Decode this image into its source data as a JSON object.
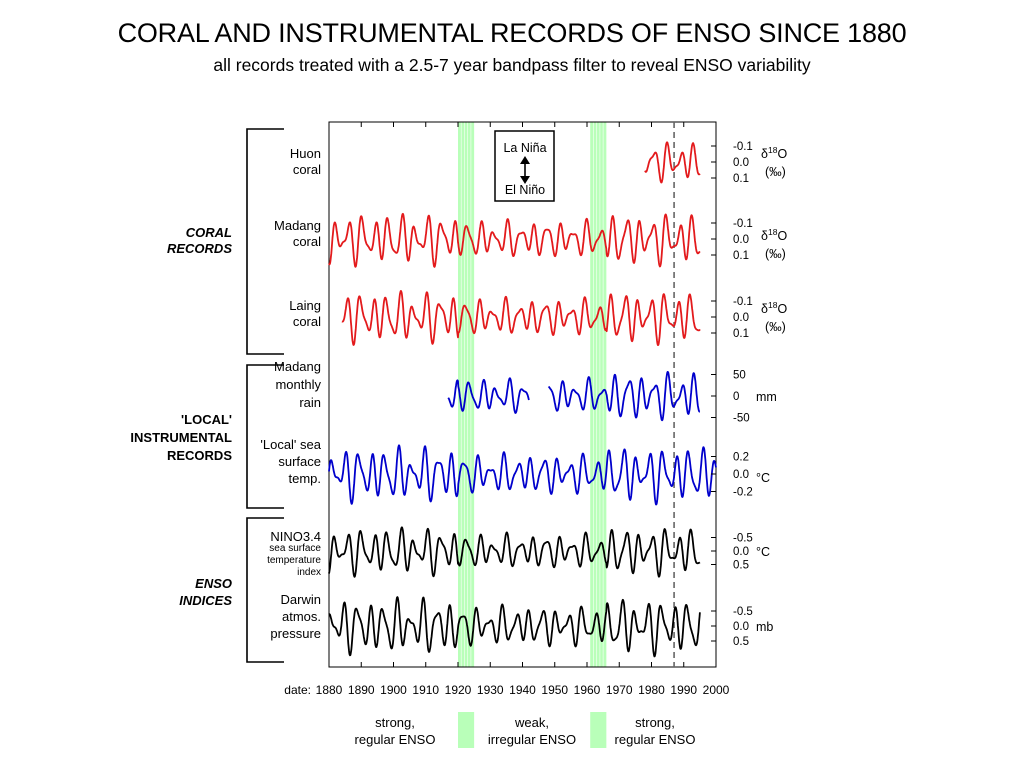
{
  "title": "CORAL AND INSTRUMENTAL RECORDS OF ENSO SINCE 1880",
  "subtitle": "all records treated with a 2.5-7 year bandpass filter to reveal ENSO variability",
  "chart_data": {
    "type": "line",
    "x_axis": {
      "label": "date:",
      "range": [
        1880,
        2000
      ],
      "ticks": [
        "1880",
        "1890",
        "1900",
        "1910",
        "1920",
        "1930",
        "1940",
        "1950",
        "1960",
        "1970",
        "1980",
        "1990",
        "2000"
      ]
    },
    "highlight_bands": [
      {
        "from": 1920,
        "to": 1925,
        "color": "#7fff7f"
      },
      {
        "from": 1961,
        "to": 1966,
        "color": "#7fff7f"
      }
    ],
    "dashed_marker_year": 1987,
    "legend_box": {
      "top_label": "La Niña",
      "bottom_label": "El Niño"
    },
    "groups": [
      {
        "label": [
          "CORAL",
          "RECORDS"
        ],
        "series": [
          0,
          1,
          2
        ]
      },
      {
        "label": [
          "'LOCAL'",
          "INSTRUMENTAL",
          "RECORDS"
        ],
        "series": [
          3,
          4
        ]
      },
      {
        "label": [
          "ENSO",
          "INDICES"
        ],
        "series": [
          5,
          6
        ]
      }
    ],
    "series": [
      {
        "name": [
          "Huon",
          "coral"
        ],
        "color": "#e31a1c",
        "x_start": 1978,
        "x_end": 1995,
        "tick_labels": [
          "-0.1",
          "0.0",
          "0.1"
        ],
        "unit": "δ18O (‰)",
        "amplitude": 0.08
      },
      {
        "name": [
          "Madang",
          "coral"
        ],
        "color": "#e31a1c",
        "x_start": 1880,
        "x_end": 1995,
        "tick_labels": [
          "-0.1",
          "0.0",
          "0.1"
        ],
        "unit": "δ18O (‰)",
        "amplitude": 0.09
      },
      {
        "name": [
          "Laing",
          "coral"
        ],
        "color": "#e31a1c",
        "x_start": 1884,
        "x_end": 1995,
        "tick_labels": [
          "-0.1",
          "0.0",
          "0.1"
        ],
        "unit": "δ18O (‰)",
        "amplitude": 0.09
      },
      {
        "name": [
          "Madang",
          "monthly",
          "rain"
        ],
        "color": "#0000cc",
        "x_start": 1917,
        "x_end": 1995,
        "gap": [
          1942,
          1948
        ],
        "tick_labels": [
          "50",
          "0",
          "-50"
        ],
        "unit": "mm",
        "amplitude": 50
      },
      {
        "name": [
          "'Local' sea",
          "surface",
          "temp."
        ],
        "color": "#0000cc",
        "x_start": 1880,
        "x_end": 2000,
        "tick_labels": [
          "0.2",
          "0.0",
          "-0.2"
        ],
        "unit": "°C",
        "amplitude": 0.25
      },
      {
        "name": [
          "NINO3.4",
          "sea surface",
          "temperature",
          "index"
        ],
        "color": "#000000",
        "x_start": 1880,
        "x_end": 1995,
        "tick_labels": [
          "-0.5",
          "0.0",
          "0.5"
        ],
        "unit": "°C",
        "amplitude": 0.6
      },
      {
        "name": [
          "Darwin",
          "atmos.",
          "pressure"
        ],
        "color": "#000000",
        "x_start": 1880,
        "x_end": 1995,
        "tick_labels": [
          "-0.5",
          "0.0",
          "0.5"
        ],
        "unit": "mb",
        "amplitude": 0.7
      }
    ],
    "period_annotations": [
      {
        "text": [
          "strong,",
          "regular ENSO"
        ]
      },
      {
        "text": [
          "weak,",
          "irregular ENSO"
        ]
      },
      {
        "text": [
          "strong,",
          "regular ENSO"
        ]
      }
    ]
  }
}
